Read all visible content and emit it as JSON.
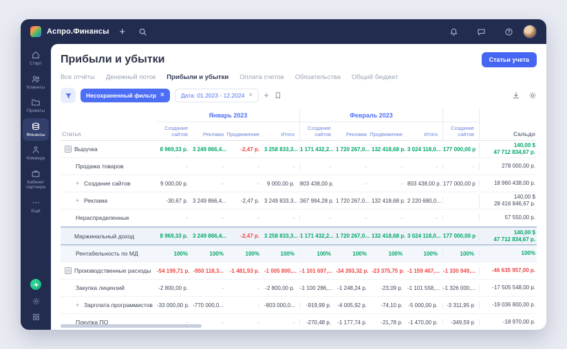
{
  "colors": {
    "accent": "#4c6ef5",
    "green": "#00a868",
    "red": "#ef4444"
  },
  "topbar": {
    "app_name": "Аспро.Финансы"
  },
  "sidebar": {
    "items": [
      {
        "label": "Старт",
        "icon": "home-icon",
        "active": false
      },
      {
        "label": "Клиенты",
        "icon": "users-icon",
        "active": false
      },
      {
        "label": "Проекты",
        "icon": "folder-icon",
        "active": false
      },
      {
        "label": "Финансы",
        "icon": "finance-icon",
        "active": true
      },
      {
        "label": "Команда",
        "icon": "team-icon",
        "active": false
      },
      {
        "label": "Кабинет партнера",
        "icon": "briefcase-icon",
        "active": false
      },
      {
        "label": "Ещё",
        "icon": "more-icon",
        "active": false
      }
    ]
  },
  "header": {
    "title": "Прибыли и убытки",
    "action": "Статьи учета"
  },
  "tabs": [
    {
      "label": "Все отчёты",
      "active": false
    },
    {
      "label": "Денежный поток",
      "active": false
    },
    {
      "label": "Прибыли и убытки",
      "active": true
    },
    {
      "label": "Оплата счетов",
      "active": false
    },
    {
      "label": "Обязательства",
      "active": false
    },
    {
      "label": "Общий бюджет",
      "active": false
    }
  ],
  "filterbar": {
    "unsaved_filter": "Несохраненный фильтр",
    "date_filter": "Дата: 01.2023 - 12.2024"
  },
  "table": {
    "first_col_header": "Статья",
    "saldo_header": "Сальдо",
    "groups": [
      {
        "label": "Январь 2023",
        "cols": [
          "Создание сайтов",
          "Реклама",
          "Продвижение",
          "Итого"
        ]
      },
      {
        "label": "Февраль 2023",
        "cols": [
          "Создание сайтов",
          "Реклама",
          "Продвижение",
          "Итого"
        ]
      },
      {
        "label": "",
        "cols": [
          "Создание сайтов"
        ]
      }
    ],
    "rows": [
      {
        "name": "Выручка",
        "icon": "collapse",
        "indent": 0,
        "vstyle": "green",
        "strong": true,
        "values": [
          "8 969,33 р.",
          "3 249 866,4...",
          "-2,47 р.",
          "3 258 833,3...",
          "1 171 432,2...",
          "1 720 267,0...",
          "132 418,68 р.",
          "3 024 118,0...",
          "177 000,00 р"
        ],
        "saldo": [
          "140,00 $",
          "47 712 834,67 р."
        ],
        "sstyle": "green"
      },
      {
        "name": "Продажа товаров",
        "indent": 1,
        "vstyle": "dark",
        "values": [
          "-",
          "-",
          "-",
          "-",
          "-",
          "-",
          "-",
          "-",
          "-"
        ],
        "saldo": [
          "278 000,00 р."
        ],
        "sstyle": "dark"
      },
      {
        "name": "Создание сайтов",
        "prefix": "+",
        "indent": 1,
        "vstyle": "dark",
        "values": [
          "9 000,00 р.",
          "-",
          "-",
          "9 000,00 р.",
          "803 438,00 р.",
          "-",
          "-",
          "803 438,00 р.",
          "177 000,00 р"
        ],
        "saldo": [
          "18 960 438,00 р."
        ],
        "sstyle": "dark"
      },
      {
        "name": "Реклама",
        "prefix": "+",
        "indent": 1,
        "vstyle": "dark",
        "values": [
          "-30,67 р.",
          "3 249 866,4...",
          "-2,47 р.",
          "3 249 833,3...",
          "367 994,28 р.",
          "1 720 267,0...",
          "132 418,68 р.",
          "2 220 680,0...",
          ""
        ],
        "saldo": [
          "140,00 $",
          "28 416 846,67 р."
        ],
        "sstyle": "dark"
      },
      {
        "name": "Нераспределенные",
        "indent": 1,
        "vstyle": "dark",
        "values": [
          "-",
          "-",
          "-",
          "-",
          "-",
          "-",
          "-",
          "-",
          ""
        ],
        "saldo": [
          "57 550,00 р."
        ],
        "sstyle": "dark"
      },
      {
        "name": "Маржинальный доход",
        "indent": 0,
        "rstyle": "margin",
        "vstyle": "green",
        "strong": true,
        "values": [
          "8 969,33 р.",
          "3 249 866,4...",
          "-2,47 р.",
          "3 258 833,3...",
          "1 171 432,2...",
          "1 720 267,0...",
          "132 418,68 р.",
          "3 024 118,0...",
          "177 000,00 р"
        ],
        "saldo": [
          "140,00 $",
          "47 712 834,67 р."
        ],
        "sstyle": "green"
      },
      {
        "name": "Рентабельность по МД",
        "indent": 1,
        "rstyle": "percent",
        "vstyle": "green",
        "strong": true,
        "values": [
          "100%",
          "100%",
          "100%",
          "100%",
          "100%",
          "100%",
          "100%",
          "100%",
          "100%"
        ],
        "saldo": [
          "100%"
        ],
        "sstyle": "green"
      },
      {
        "name": "Производственные расходы",
        "icon": "collapse",
        "indent": 0,
        "vstyle": "red",
        "strong": true,
        "values": [
          "-54 199,71 р.",
          "-950 118,3...",
          "-1 481,93 р.",
          "-1 005 800,...",
          "-1 101 697,...",
          "-34 393,32 р.",
          "-23 375,75 р.",
          "-1 159 467,...",
          "-1 330 949,..."
        ],
        "saldo": [
          "-46 635 957,00 р."
        ],
        "sstyle": "red"
      },
      {
        "name": "Закупка лицензий",
        "indent": 1,
        "vstyle": "dark",
        "values": [
          "-2 800,00 р.",
          "-",
          "-",
          "-2 800,00 р.",
          "-1 100 286,...",
          "-1 248,24 р.",
          "-23,09 р.",
          "-1 101 558,...",
          "-1 326 000,..."
        ],
        "saldo": [
          "-17 505 548,00 р."
        ],
        "sstyle": "dark"
      },
      {
        "name": "Зарплата программистов",
        "prefix": "+",
        "indent": 1,
        "vstyle": "dark",
        "values": [
          "-33 000,00 р.",
          "-770 000,0...",
          "-",
          "-803 000,0...",
          "-919,99 р.",
          "-4 005,92 р.",
          "-74,10 р.",
          "-5 000,00 р.",
          "-3 311,95 р"
        ],
        "saldo": [
          "-19 036 800,00 р."
        ],
        "sstyle": "dark"
      },
      {
        "name": "Покупка ПО",
        "indent": 1,
        "vstyle": "dark",
        "values": [
          "-",
          "-",
          "-",
          "-",
          "-270,48 р.",
          "-1 177,74 р.",
          "-21,78 р.",
          "-1 470,00 р.",
          "-349,59 р"
        ],
        "saldo": [
          "-18 970,00 р."
        ],
        "sstyle": "dark"
      }
    ]
  }
}
